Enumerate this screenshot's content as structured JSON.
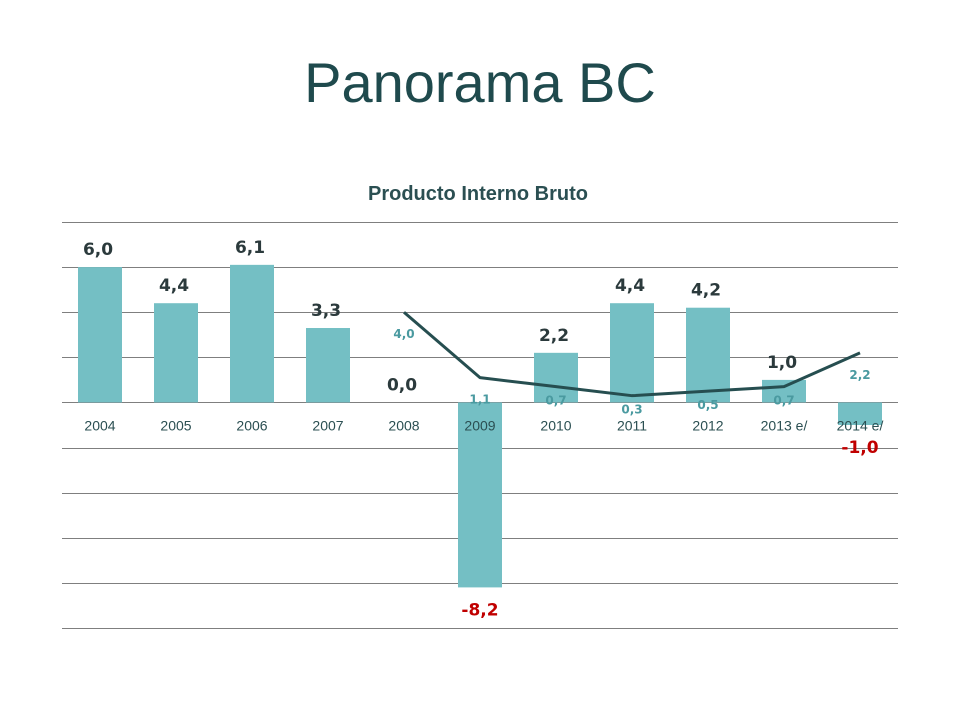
{
  "slide": {
    "title": "Panorama BC"
  },
  "chart_data": {
    "type": "bar",
    "title": "Producto Interno Bruto",
    "xlabel": "",
    "ylabel": "",
    "ylim": [
      -10,
      8
    ],
    "grid": true,
    "legend": "none",
    "categories": [
      "2004",
      "2005",
      "2006",
      "2007",
      "2008",
      "2009",
      "2010",
      "2011",
      "2012",
      "2013 e/",
      "2014 e/"
    ],
    "series": [
      {
        "type": "bar",
        "values": [
          6.0,
          4.4,
          6.1,
          3.3,
          0.0,
          -8.2,
          2.2,
          4.4,
          4.2,
          1.0,
          -1.0
        ],
        "labels": [
          "6,0",
          "4,4",
          "6,1",
          "3,3",
          "0,0",
          "-8,2",
          "2,2",
          "4,4",
          "4,2",
          "1,0",
          "-1,0"
        ]
      },
      {
        "type": "line",
        "values": [
          null,
          null,
          null,
          null,
          4.0,
          1.1,
          0.7,
          0.3,
          0.5,
          0.7,
          2.2
        ],
        "labels": [
          "",
          "",
          "",
          "",
          "4,0",
          "1,1",
          "0,7",
          "0,3",
          "0,5",
          "0,7",
          "2,2"
        ]
      }
    ],
    "colors": {
      "bar": "#74bfc4",
      "line": "#264e50",
      "positive_label": "#2b3a3c",
      "negative_label": "#c00000",
      "line_label": "#4a9aa0"
    }
  }
}
